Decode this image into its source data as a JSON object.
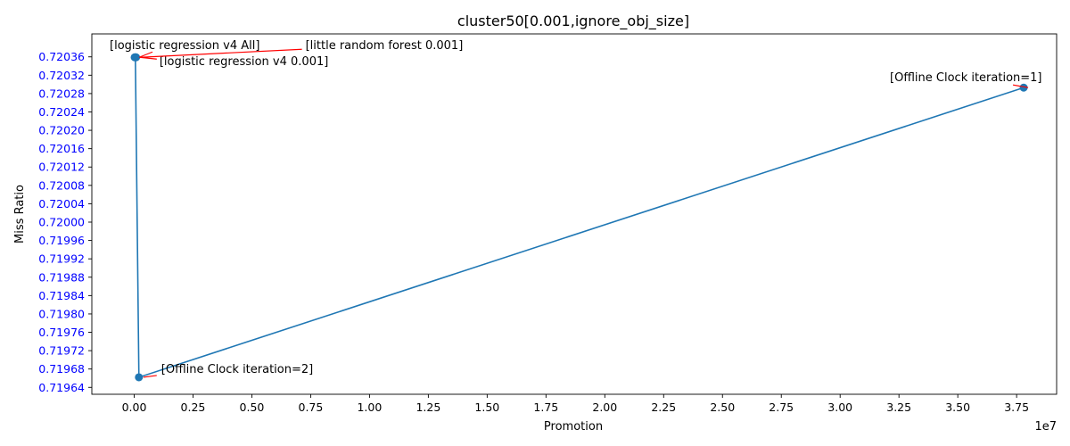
{
  "chart_data": {
    "type": "line",
    "title": "cluster50[0.001,ignore_obj_size]",
    "xlabel": "Promotion",
    "ylabel": "Miss Ratio",
    "x_offset_label": "1e7",
    "xlim": [
      -1800000,
      39200000
    ],
    "ylim": [
      0.719625,
      0.72041
    ],
    "x_ticks": [
      0,
      2500000,
      5000000,
      7500000,
      10000000,
      12500000,
      15000000,
      17500000,
      20000000,
      22500000,
      25000000,
      27500000,
      30000000,
      32500000,
      35000000,
      37500000
    ],
    "x_tick_labels": [
      "0.00",
      "0.25",
      "0.50",
      "0.75",
      "1.00",
      "1.25",
      "1.50",
      "1.75",
      "2.00",
      "2.25",
      "2.50",
      "2.75",
      "3.00",
      "3.25",
      "3.50",
      "3.75"
    ],
    "y_ticks": [
      0.71964,
      0.71968,
      0.71972,
      0.71976,
      0.7198,
      0.71984,
      0.71988,
      0.71992,
      0.71996,
      0.72,
      0.72004,
      0.72008,
      0.72012,
      0.72016,
      0.7202,
      0.72024,
      0.72028,
      0.72032,
      0.72036
    ],
    "y_tick_labels": [
      "0.71964",
      "0.71968",
      "0.71972",
      "0.71976",
      "0.71980",
      "0.71984",
      "0.71988",
      "0.71992",
      "0.71996",
      "0.72000",
      "0.72004",
      "0.72008",
      "0.72012",
      "0.72016",
      "0.72020",
      "0.72024",
      "0.72028",
      "0.72032",
      "0.72036"
    ],
    "y_tick_color": "#0000ff",
    "line_color": "#1f77b4",
    "annotation_arrow_color": "#ff0000",
    "grid": false,
    "points": [
      {
        "x": 37800000,
        "y": 0.720293,
        "label": "[Offline Clock iteration=1]"
      },
      {
        "x": 200000,
        "y": 0.719662,
        "label": "[Offline Clock iteration=2]"
      },
      {
        "x": 50000,
        "y": 0.720359,
        "label": "[logistic regression v4 0.001]"
      },
      {
        "x": 80000,
        "y": 0.720359,
        "label": "[little random forest 0.001]"
      },
      {
        "x": 20000,
        "y": 0.720359,
        "label": "[logistic regression v4 All]"
      }
    ]
  }
}
